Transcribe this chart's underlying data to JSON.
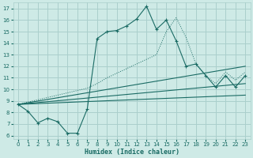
{
  "xlabel": "Humidex (Indice chaleur)",
  "bg_color": "#ceeae6",
  "grid_color": "#aacfcc",
  "line_color": "#1a6b64",
  "xlim": [
    -0.5,
    23.5
  ],
  "ylim": [
    5.7,
    17.5
  ],
  "xticks": [
    0,
    1,
    2,
    3,
    4,
    5,
    6,
    7,
    8,
    9,
    10,
    11,
    12,
    13,
    14,
    15,
    16,
    17,
    18,
    19,
    20,
    21,
    22,
    23
  ],
  "yticks": [
    6,
    7,
    8,
    9,
    10,
    11,
    12,
    13,
    14,
    15,
    16,
    17
  ],
  "curve_main_x": [
    0,
    1,
    2,
    3,
    4,
    5,
    6,
    7,
    8,
    9,
    10,
    11,
    12,
    13,
    14,
    15,
    16,
    17,
    18,
    19,
    20,
    21,
    22,
    23
  ],
  "curve_main_y": [
    8.7,
    8.1,
    7.1,
    7.5,
    7.2,
    6.2,
    6.2,
    8.3,
    14.4,
    15.0,
    15.1,
    15.5,
    16.1,
    17.2,
    15.2,
    16.0,
    14.2,
    12.0,
    12.2,
    11.2,
    10.2,
    11.2,
    10.2,
    11.2
  ],
  "curve_dotted_x": [
    0,
    1,
    2,
    3,
    4,
    5,
    6,
    7,
    8,
    9,
    10,
    11,
    12,
    13,
    14,
    15,
    16,
    17,
    18,
    19,
    20,
    21,
    22,
    23
  ],
  "curve_dotted_y": [
    8.7,
    8.9,
    9.1,
    9.3,
    9.5,
    9.7,
    9.9,
    10.1,
    10.5,
    11.0,
    11.4,
    11.8,
    12.2,
    12.6,
    13.0,
    15.0,
    16.2,
    14.5,
    12.2,
    11.2,
    10.5,
    11.5,
    10.8,
    11.5
  ],
  "curve2_x": [
    0,
    23
  ],
  "curve2_y": [
    8.7,
    12.0
  ],
  "curve3_x": [
    0,
    23
  ],
  "curve3_y": [
    8.7,
    10.5
  ],
  "curve4_x": [
    0,
    23
  ],
  "curve4_y": [
    8.7,
    9.5
  ]
}
